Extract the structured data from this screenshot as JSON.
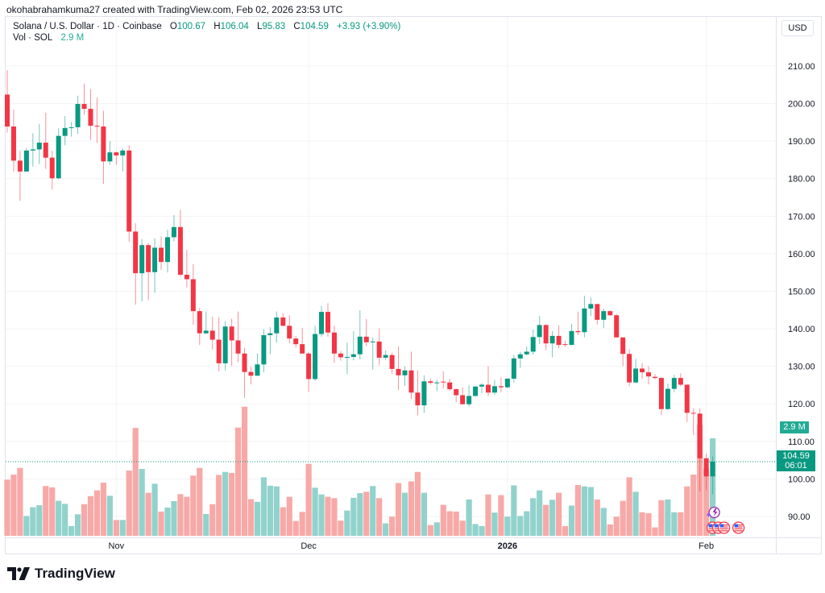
{
  "attribution": "okohabrahamkuma27 created with TradingView.com, Feb 02, 2026 23:53 UTC",
  "legend": {
    "symbol": "Solana / U.S. Dollar · 1D · Coinbase",
    "open_label": "O",
    "open": "100.67",
    "high_label": "H",
    "high": "106.04",
    "low_label": "L",
    "low": "95.83",
    "close_label": "C",
    "close": "104.59",
    "change": "+3.93 (+3.90%)",
    "volume_label": "Vol · SOL",
    "volume": "2.9 M"
  },
  "currency": "USD",
  "badges": {
    "volume": "2.9 M",
    "price": "104.59",
    "countdown": "06:01"
  },
  "brand": "TradingView",
  "colors": {
    "up": "#089981",
    "down": "#f23645",
    "volume_up": "#92d2cc",
    "volume_down": "#f7a9a7",
    "grid": "#f2f3f6",
    "last_price_line": "#089981"
  },
  "chart_data": {
    "type": "candlestick",
    "title": "Solana / U.S. Dollar · 1D · Coinbase",
    "ylim": [
      85,
      212
    ],
    "y_ticks": [
      90,
      100,
      110,
      120,
      130,
      140,
      150,
      160,
      170,
      180,
      190,
      200,
      210
    ],
    "y_tick_labels": [
      "90.00",
      "100.00",
      "110.00",
      "120.00",
      "130.00",
      "140.00",
      "150.00",
      "160.00",
      "170.00",
      "180.00",
      "190.00",
      "200.00",
      "210.00"
    ],
    "x_ticks": [
      {
        "label": "Nov",
        "date": "2025-11-01"
      },
      {
        "label": "Dec",
        "date": "2025-12-01"
      },
      {
        "label": "2026",
        "date": "2026-01-01"
      },
      {
        "label": "Feb",
        "date": "2026-02-01"
      }
    ],
    "grid": true,
    "last_price": 104.59,
    "volume_unit": "M SOL",
    "columns": [
      "date",
      "open",
      "high",
      "low",
      "close",
      "volume"
    ],
    "candles": [
      [
        "2025-10-15",
        202.4,
        208.9,
        192.3,
        193.9,
        1.67
      ],
      [
        "2025-10-16",
        193.9,
        198.4,
        181.9,
        184.8,
        1.82
      ],
      [
        "2025-10-17",
        184.8,
        187.4,
        174.1,
        181.9,
        2.02
      ],
      [
        "2025-10-18",
        181.9,
        188.2,
        181.8,
        187.5,
        0.59
      ],
      [
        "2025-10-19",
        187.5,
        192.1,
        183.2,
        187.8,
        0.85
      ],
      [
        "2025-10-20",
        187.8,
        194.6,
        183.9,
        189.6,
        0.91
      ],
      [
        "2025-10-21",
        189.6,
        197.6,
        182.6,
        185.6,
        1.48
      ],
      [
        "2025-10-22",
        185.6,
        187.4,
        177.1,
        180.1,
        1.44
      ],
      [
        "2025-10-23",
        180.1,
        193.4,
        179.8,
        191.4,
        1.04
      ],
      [
        "2025-10-24",
        191.4,
        196.7,
        188.9,
        193.5,
        0.95
      ],
      [
        "2025-10-25",
        193.5,
        195.1,
        191.2,
        193.7,
        0.29
      ],
      [
        "2025-10-26",
        193.7,
        202.1,
        191.9,
        199.9,
        0.64
      ],
      [
        "2025-10-27",
        199.9,
        205.3,
        197.1,
        198.6,
        0.94
      ],
      [
        "2025-10-28",
        198.6,
        203.9,
        190.3,
        194.1,
        1.18
      ],
      [
        "2025-10-29",
        194.1,
        201.6,
        189.6,
        193.9,
        1.35
      ],
      [
        "2025-10-30",
        193.9,
        198.1,
        178.6,
        184.6,
        1.58
      ],
      [
        "2025-10-31",
        184.6,
        190.0,
        183.7,
        187.0,
        1.19
      ],
      [
        "2025-11-01",
        187.0,
        187.3,
        183.7,
        186.2,
        0.47
      ],
      [
        "2025-11-02",
        186.2,
        188.1,
        181.9,
        187.5,
        0.47
      ],
      [
        "2025-11-03",
        187.5,
        188.9,
        163.2,
        165.9,
        1.94
      ],
      [
        "2025-11-04",
        165.9,
        168.1,
        146.4,
        154.8,
        3.21
      ],
      [
        "2025-11-05",
        154.8,
        163.9,
        147.3,
        162.3,
        1.99
      ],
      [
        "2025-11-06",
        162.3,
        162.9,
        147.6,
        155.1,
        1.28
      ],
      [
        "2025-11-07",
        155.1,
        164.1,
        149.6,
        161.6,
        1.55
      ],
      [
        "2025-11-08",
        161.6,
        164.6,
        155.7,
        157.8,
        0.72
      ],
      [
        "2025-11-09",
        157.8,
        166.4,
        155.0,
        164.4,
        0.84
      ],
      [
        "2025-11-10",
        164.4,
        170.3,
        163.3,
        167.1,
        1.03
      ],
      [
        "2025-11-11",
        167.1,
        171.7,
        153.9,
        154.4,
        1.24
      ],
      [
        "2025-11-12",
        154.4,
        161.0,
        151.0,
        153.2,
        1.16
      ],
      [
        "2025-11-13",
        153.2,
        157.2,
        141.1,
        144.7,
        1.79
      ],
      [
        "2025-11-14",
        144.7,
        145.6,
        135.7,
        138.8,
        2.02
      ],
      [
        "2025-11-15",
        138.8,
        144.6,
        138.6,
        139.5,
        0.65
      ],
      [
        "2025-11-16",
        139.5,
        143.2,
        134.5,
        137.1,
        0.94
      ],
      [
        "2025-11-17",
        137.1,
        143.1,
        128.6,
        130.8,
        1.81
      ],
      [
        "2025-11-18",
        130.8,
        142.0,
        128.9,
        140.6,
        1.9
      ],
      [
        "2025-11-19",
        140.6,
        142.7,
        130.1,
        136.9,
        1.87
      ],
      [
        "2025-11-20",
        136.9,
        144.6,
        131.1,
        133.4,
        3.22
      ],
      [
        "2025-11-21",
        133.4,
        134.9,
        121.6,
        128.5,
        3.84
      ],
      [
        "2025-11-22",
        128.5,
        129.9,
        125.2,
        127.5,
        1.09
      ],
      [
        "2025-11-23",
        127.5,
        133.4,
        127.5,
        130.5,
        1.01
      ],
      [
        "2025-11-24",
        130.5,
        139.9,
        128.4,
        138.3,
        1.74
      ],
      [
        "2025-11-25",
        138.3,
        140.4,
        133.2,
        138.8,
        1.49
      ],
      [
        "2025-11-26",
        138.8,
        144.6,
        136.3,
        143.0,
        1.47
      ],
      [
        "2025-11-27",
        143.0,
        144.1,
        140.6,
        140.8,
        0.85
      ],
      [
        "2025-11-28",
        140.8,
        143.6,
        136.1,
        137.4,
        1.16
      ],
      [
        "2025-11-29",
        137.4,
        138.1,
        135.0,
        135.9,
        0.44
      ],
      [
        "2025-11-30",
        135.9,
        140.2,
        133.4,
        133.4,
        0.71
      ],
      [
        "2025-12-01",
        133.4,
        133.8,
        123.2,
        126.6,
        2.14
      ],
      [
        "2025-12-02",
        126.6,
        140.8,
        126.1,
        138.6,
        1.43
      ],
      [
        "2025-12-03",
        138.6,
        146.1,
        137.9,
        144.5,
        1.23
      ],
      [
        "2025-12-04",
        144.5,
        146.8,
        137.9,
        139.0,
        1.16
      ],
      [
        "2025-12-05",
        139.0,
        140.8,
        130.9,
        133.4,
        1.12
      ],
      [
        "2025-12-06",
        133.4,
        134.1,
        131.5,
        132.4,
        0.45
      ],
      [
        "2025-12-07",
        132.4,
        136.3,
        127.9,
        132.5,
        0.75
      ],
      [
        "2025-12-08",
        132.5,
        139.4,
        131.6,
        133.2,
        1.13
      ],
      [
        "2025-12-09",
        133.2,
        144.9,
        131.8,
        137.9,
        1.27
      ],
      [
        "2025-12-10",
        137.9,
        142.6,
        135.4,
        136.4,
        1.31
      ],
      [
        "2025-12-11",
        136.4,
        137.7,
        129.1,
        136.6,
        1.48
      ],
      [
        "2025-12-12",
        136.6,
        140.1,
        130.3,
        132.3,
        1.12
      ],
      [
        "2025-12-13",
        132.3,
        134.2,
        131.7,
        133.0,
        0.37
      ],
      [
        "2025-12-14",
        133.0,
        133.6,
        128.0,
        129.3,
        0.57
      ],
      [
        "2025-12-15",
        129.3,
        135.3,
        123.6,
        127.6,
        1.57
      ],
      [
        "2025-12-16",
        127.6,
        130.0,
        124.8,
        128.9,
        1.28
      ],
      [
        "2025-12-17",
        128.9,
        133.9,
        121.2,
        123.0,
        1.62
      ],
      [
        "2025-12-18",
        123.0,
        128.9,
        116.9,
        119.6,
        1.9
      ],
      [
        "2025-12-19",
        119.6,
        127.6,
        117.6,
        126.0,
        1.28
      ],
      [
        "2025-12-20",
        126.0,
        126.7,
        125.1,
        125.6,
        0.32
      ],
      [
        "2025-12-21",
        125.6,
        126.4,
        123.4,
        125.7,
        0.4
      ],
      [
        "2025-12-22",
        125.9,
        128.7,
        124.1,
        125.8,
        0.92
      ],
      [
        "2025-12-23",
        125.7,
        126.7,
        123.4,
        123.9,
        0.73
      ],
      [
        "2025-12-24",
        123.9,
        124.1,
        120.5,
        122.3,
        0.72
      ],
      [
        "2025-12-25",
        122.3,
        124.4,
        119.8,
        119.9,
        0.45
      ],
      [
        "2025-12-26",
        119.9,
        125.0,
        119.3,
        122.1,
        1.08
      ],
      [
        "2025-12-27",
        122.1,
        124.8,
        121.9,
        124.6,
        0.35
      ],
      [
        "2025-12-28",
        124.6,
        125.5,
        122.9,
        125.1,
        0.29
      ],
      [
        "2025-12-29",
        125.1,
        130.0,
        122.1,
        123.0,
        1.23
      ],
      [
        "2025-12-30",
        123.0,
        126.4,
        122.4,
        124.7,
        0.69
      ],
      [
        "2025-12-31",
        124.7,
        127.1,
        123.1,
        124.4,
        1.21
      ],
      [
        "2026-01-01",
        124.4,
        126.9,
        124.1,
        126.7,
        0.57
      ],
      [
        "2026-01-02",
        126.7,
        133.0,
        125.7,
        132.1,
        1.5
      ],
      [
        "2026-01-03",
        132.1,
        133.9,
        129.6,
        133.2,
        0.59
      ],
      [
        "2026-01-04",
        133.2,
        135.3,
        132.9,
        133.9,
        0.73
      ],
      [
        "2026-01-05",
        133.9,
        139.8,
        133.1,
        137.8,
        1.12
      ],
      [
        "2026-01-06",
        137.8,
        143.4,
        136.0,
        141.0,
        1.35
      ],
      [
        "2026-01-07",
        141.0,
        141.2,
        134.3,
        136.1,
        0.92
      ],
      [
        "2026-01-08",
        136.1,
        139.4,
        132.4,
        138.1,
        1.07
      ],
      [
        "2026-01-09",
        138.1,
        140.9,
        134.8,
        135.7,
        1.28
      ],
      [
        "2026-01-10",
        135.9,
        136.8,
        135.2,
        135.8,
        0.29
      ],
      [
        "2026-01-11",
        135.7,
        141.3,
        135.6,
        139.4,
        0.9
      ],
      [
        "2026-01-12",
        139.4,
        144.6,
        138.3,
        139.1,
        1.51
      ],
      [
        "2026-01-13",
        139.1,
        148.8,
        137.7,
        145.4,
        1.47
      ],
      [
        "2026-01-14",
        145.4,
        148.3,
        143.4,
        146.6,
        1.45
      ],
      [
        "2026-01-15",
        146.6,
        146.6,
        141.1,
        142.4,
        1.08
      ],
      [
        "2026-01-16",
        142.4,
        145.4,
        140.2,
        144.7,
        0.83
      ],
      [
        "2026-01-17",
        144.7,
        144.9,
        143.4,
        143.6,
        0.34
      ],
      [
        "2026-01-18",
        143.6,
        144.0,
        137.7,
        137.7,
        0.57
      ],
      [
        "2026-01-19",
        137.7,
        137.7,
        130.1,
        133.3,
        1.04
      ],
      [
        "2026-01-20",
        133.3,
        134.5,
        124.7,
        125.7,
        1.74
      ],
      [
        "2026-01-21",
        125.7,
        132.0,
        125.4,
        129.4,
        1.31
      ],
      [
        "2026-01-22",
        129.4,
        130.8,
        126.6,
        128.4,
        0.7
      ],
      [
        "2026-01-23",
        128.4,
        130.0,
        125.2,
        127.3,
        0.67
      ],
      [
        "2026-01-24",
        127.2,
        127.9,
        126.5,
        126.9,
        0.25
      ],
      [
        "2026-01-25",
        126.9,
        127.1,
        117.1,
        118.6,
        1.06
      ],
      [
        "2026-01-26",
        118.6,
        125.4,
        118.4,
        124.0,
        1.08
      ],
      [
        "2026-01-27",
        124.0,
        127.7,
        123.1,
        126.9,
        0.7
      ],
      [
        "2026-01-28",
        126.9,
        128.1,
        124.7,
        125.1,
        0.7
      ],
      [
        "2026-01-29",
        125.1,
        125.2,
        115.2,
        117.6,
        1.47
      ],
      [
        "2026-01-30",
        117.6,
        118.8,
        111.7,
        117.4,
        1.82
      ],
      [
        "2026-01-31",
        117.4,
        118.8,
        96.7,
        105.5,
        3.3
      ],
      [
        "2026-02-01",
        105.5,
        106.7,
        97.0,
        100.67,
        2.0
      ],
      [
        "2026-02-02",
        100.67,
        106.04,
        95.83,
        104.59,
        2.9
      ]
    ]
  },
  "events": [
    {
      "icon": "lightning-event-icon"
    },
    {
      "icon": "us-flag-event-icon"
    },
    {
      "icon": "us-flag-event-icon"
    },
    {
      "icon": "us-flag-event-icon"
    },
    {
      "icon": "us-flag-event-icon"
    }
  ]
}
